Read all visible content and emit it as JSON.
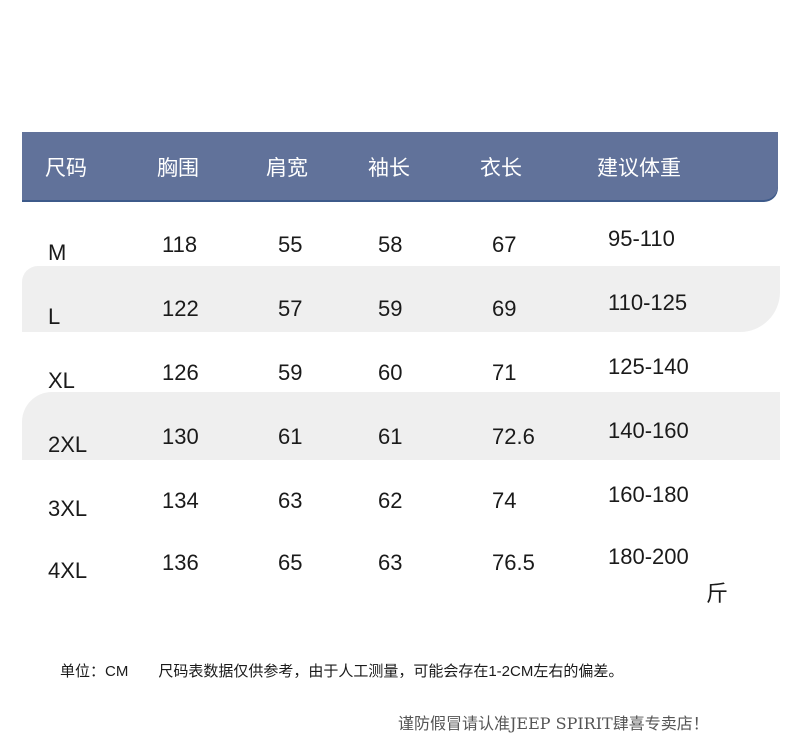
{
  "headers": [
    "尺码",
    "胸围",
    "肩宽",
    "袖长",
    "衣长",
    "建议体重"
  ],
  "rows": [
    [
      "M",
      "118",
      "55",
      "58",
      "67",
      "95-110"
    ],
    [
      "L",
      "122",
      "57",
      "59",
      "69",
      "110-125"
    ],
    [
      "XL",
      "126",
      "59",
      "60",
      "71",
      "125-140"
    ],
    [
      "2XL",
      "130",
      "61",
      "61",
      "72.6",
      "140-160"
    ],
    [
      "3XL",
      "134",
      "63",
      "62",
      "74",
      "160-180"
    ],
    [
      "4XL",
      "136",
      "65",
      "63",
      "76.5",
      "180-200"
    ]
  ],
  "weight_unit": "斤",
  "note": {
    "unit": "单位：CM",
    "text": "尺码表数据仅供参考，由于人工测量，可能会存在1-2CM左右的偏差。"
  },
  "brand_notice": "谨防假冒请认准JEEP SPIRIT肆喜专卖店！",
  "colors": {
    "header_bg": "#61729a",
    "band_bg": "#efefef"
  }
}
